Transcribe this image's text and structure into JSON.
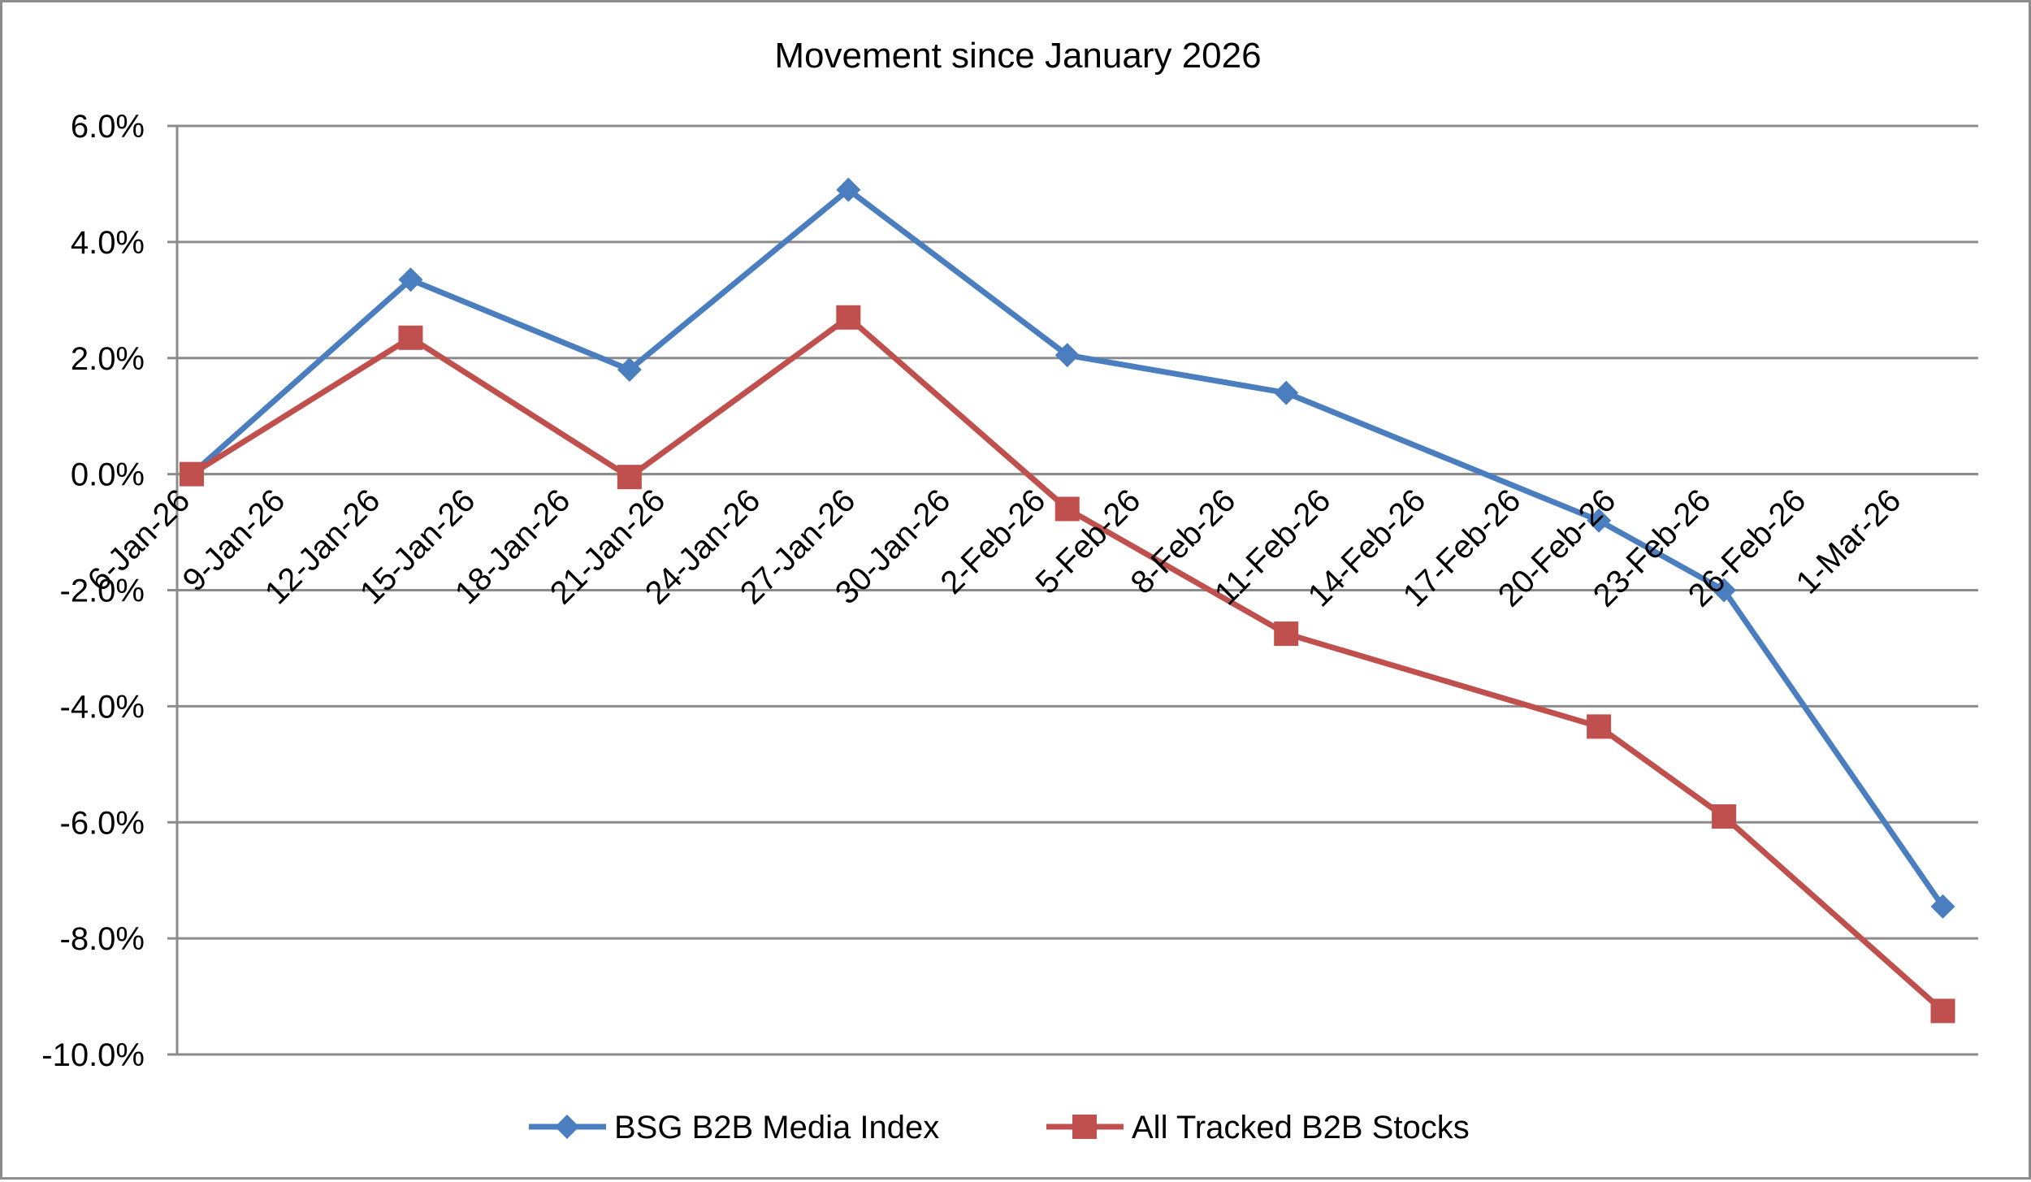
{
  "chart_data": {
    "type": "line",
    "title": "Movement since January 2026",
    "xlabel": "",
    "ylabel": "",
    "x_ticks": [
      "6-Jan-26",
      "9-Jan-26",
      "12-Jan-26",
      "15-Jan-26",
      "18-Jan-26",
      "21-Jan-26",
      "24-Jan-26",
      "27-Jan-26",
      "30-Jan-26",
      "2-Feb-26",
      "5-Feb-26",
      "8-Feb-26",
      "11-Feb-26",
      "14-Feb-26",
      "17-Feb-26",
      "20-Feb-26",
      "23-Feb-26",
      "26-Feb-26",
      "1-Mar-26"
    ],
    "x_range": [
      "2026-01-06",
      "2026-03-04"
    ],
    "ylim": [
      -10,
      6
    ],
    "y_ticks": [
      6,
      4,
      2,
      0,
      -2,
      -4,
      -6,
      -8,
      -10
    ],
    "y_tick_labels": [
      "6.0%",
      "4.0%",
      "2.0%",
      "0.0%",
      "-2.0%",
      "-4.0%",
      "-6.0%",
      "-8.0%",
      "-10.0%"
    ],
    "grid": true,
    "legend_position": "bottom",
    "series": [
      {
        "name": "BSG B2B Media Index",
        "color": "#4a7ebf",
        "marker": "diamond",
        "points": [
          {
            "x": "2026-01-06",
            "y": 0.0
          },
          {
            "x": "2026-01-13",
            "y": 3.35
          },
          {
            "x": "2026-01-20",
            "y": 1.8
          },
          {
            "x": "2026-01-27",
            "y": 4.9
          },
          {
            "x": "2026-02-03",
            "y": 2.05
          },
          {
            "x": "2026-02-10",
            "y": 1.4
          },
          {
            "x": "2026-02-20",
            "y": -0.8
          },
          {
            "x": "2026-02-24",
            "y": -2.0
          },
          {
            "x": "2026-03-03",
            "y": -7.45
          }
        ]
      },
      {
        "name": "All Tracked B2B Stocks",
        "color": "#c0504d",
        "marker": "square",
        "points": [
          {
            "x": "2026-01-06",
            "y": 0.0
          },
          {
            "x": "2026-01-13",
            "y": 2.35
          },
          {
            "x": "2026-01-20",
            "y": -0.05
          },
          {
            "x": "2026-01-27",
            "y": 2.7
          },
          {
            "x": "2026-02-03",
            "y": -0.6
          },
          {
            "x": "2026-02-10",
            "y": -2.75
          },
          {
            "x": "2026-02-20",
            "y": -4.35
          },
          {
            "x": "2026-02-24",
            "y": -5.9
          },
          {
            "x": "2026-03-03",
            "y": -9.25
          }
        ]
      }
    ]
  }
}
